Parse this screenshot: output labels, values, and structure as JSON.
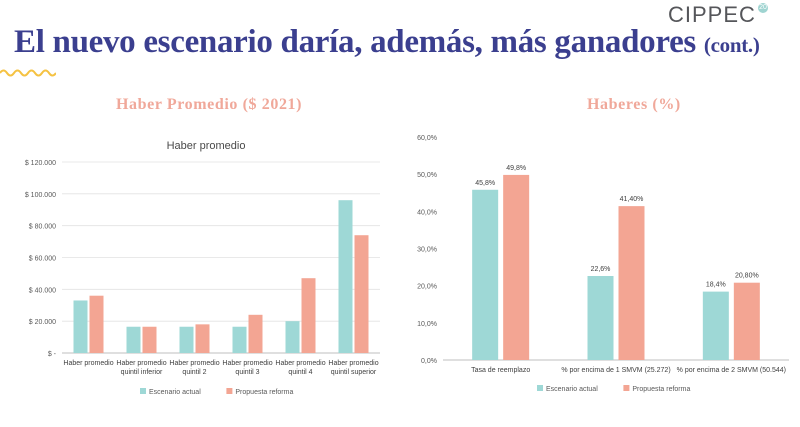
{
  "slide": {
    "title": "El nuevo escenario daría, además, más ganadores",
    "title_suffix": "(cont.)",
    "logo": "CIPPEC",
    "logo_mark": "20",
    "left_heading": "Haber Promedio ($ 2021)",
    "right_heading": "Haberes (%)"
  },
  "colors": {
    "title": "#3b3f8f",
    "heading": "#f0a89a",
    "series_actual": "#9ed8d6",
    "series_reforma": "#f3a593",
    "wave": "#f5c242"
  },
  "chart_data": [
    {
      "type": "bar",
      "title": "Haber promedio",
      "categories": [
        [
          "Haber promedio"
        ],
        [
          "Haber promedio",
          "quintil inferior"
        ],
        [
          "Haber promedio",
          "quintil 2"
        ],
        [
          "Haber promedio",
          "quintil 3"
        ],
        [
          "Haber promedio",
          "quintil 4"
        ],
        [
          "Haber promedio",
          "quintil superior"
        ]
      ],
      "series": [
        {
          "name": "Escenario actual",
          "values": [
            33000,
            16500,
            16500,
            16500,
            20000,
            96000
          ]
        },
        {
          "name": "Propuesta reforma",
          "values": [
            36000,
            16500,
            18000,
            24000,
            47000,
            74000
          ]
        }
      ],
      "ylim": [
        0,
        120000
      ],
      "yticks": [
        0,
        20000,
        40000,
        60000,
        80000,
        100000,
        120000
      ],
      "ytick_labels": [
        "$ -",
        "$ 20.000",
        "$ 40.000",
        "$ 60.000",
        "$ 80.000",
        "$ 100.000",
        "$ 120.000"
      ],
      "grid": true,
      "legend": "bottom"
    },
    {
      "type": "bar",
      "title": "",
      "categories": [
        [
          "Tasa de reemplazo"
        ],
        [
          "% por encima de 1 SMVM (25.272)"
        ],
        [
          "% por encima de 2 SMVM (50.544)"
        ]
      ],
      "series": [
        {
          "name": "Escenario actual",
          "values": [
            45.8,
            22.6,
            18.4
          ],
          "labels": [
            "45,8%",
            "22,6%",
            "18,4%"
          ]
        },
        {
          "name": "Propuesta reforma",
          "values": [
            49.8,
            41.4,
            20.8
          ],
          "labels": [
            "49,8%",
            "41,40%",
            "20,80%"
          ]
        }
      ],
      "ylim": [
        0,
        60
      ],
      "yticks": [
        0,
        10,
        20,
        30,
        40,
        50,
        60
      ],
      "ytick_labels": [
        "0,0%",
        "10,0%",
        "20,0%",
        "30,0%",
        "40,0%",
        "50,0%",
        "60,0%"
      ],
      "grid": false,
      "legend": "bottom"
    }
  ]
}
